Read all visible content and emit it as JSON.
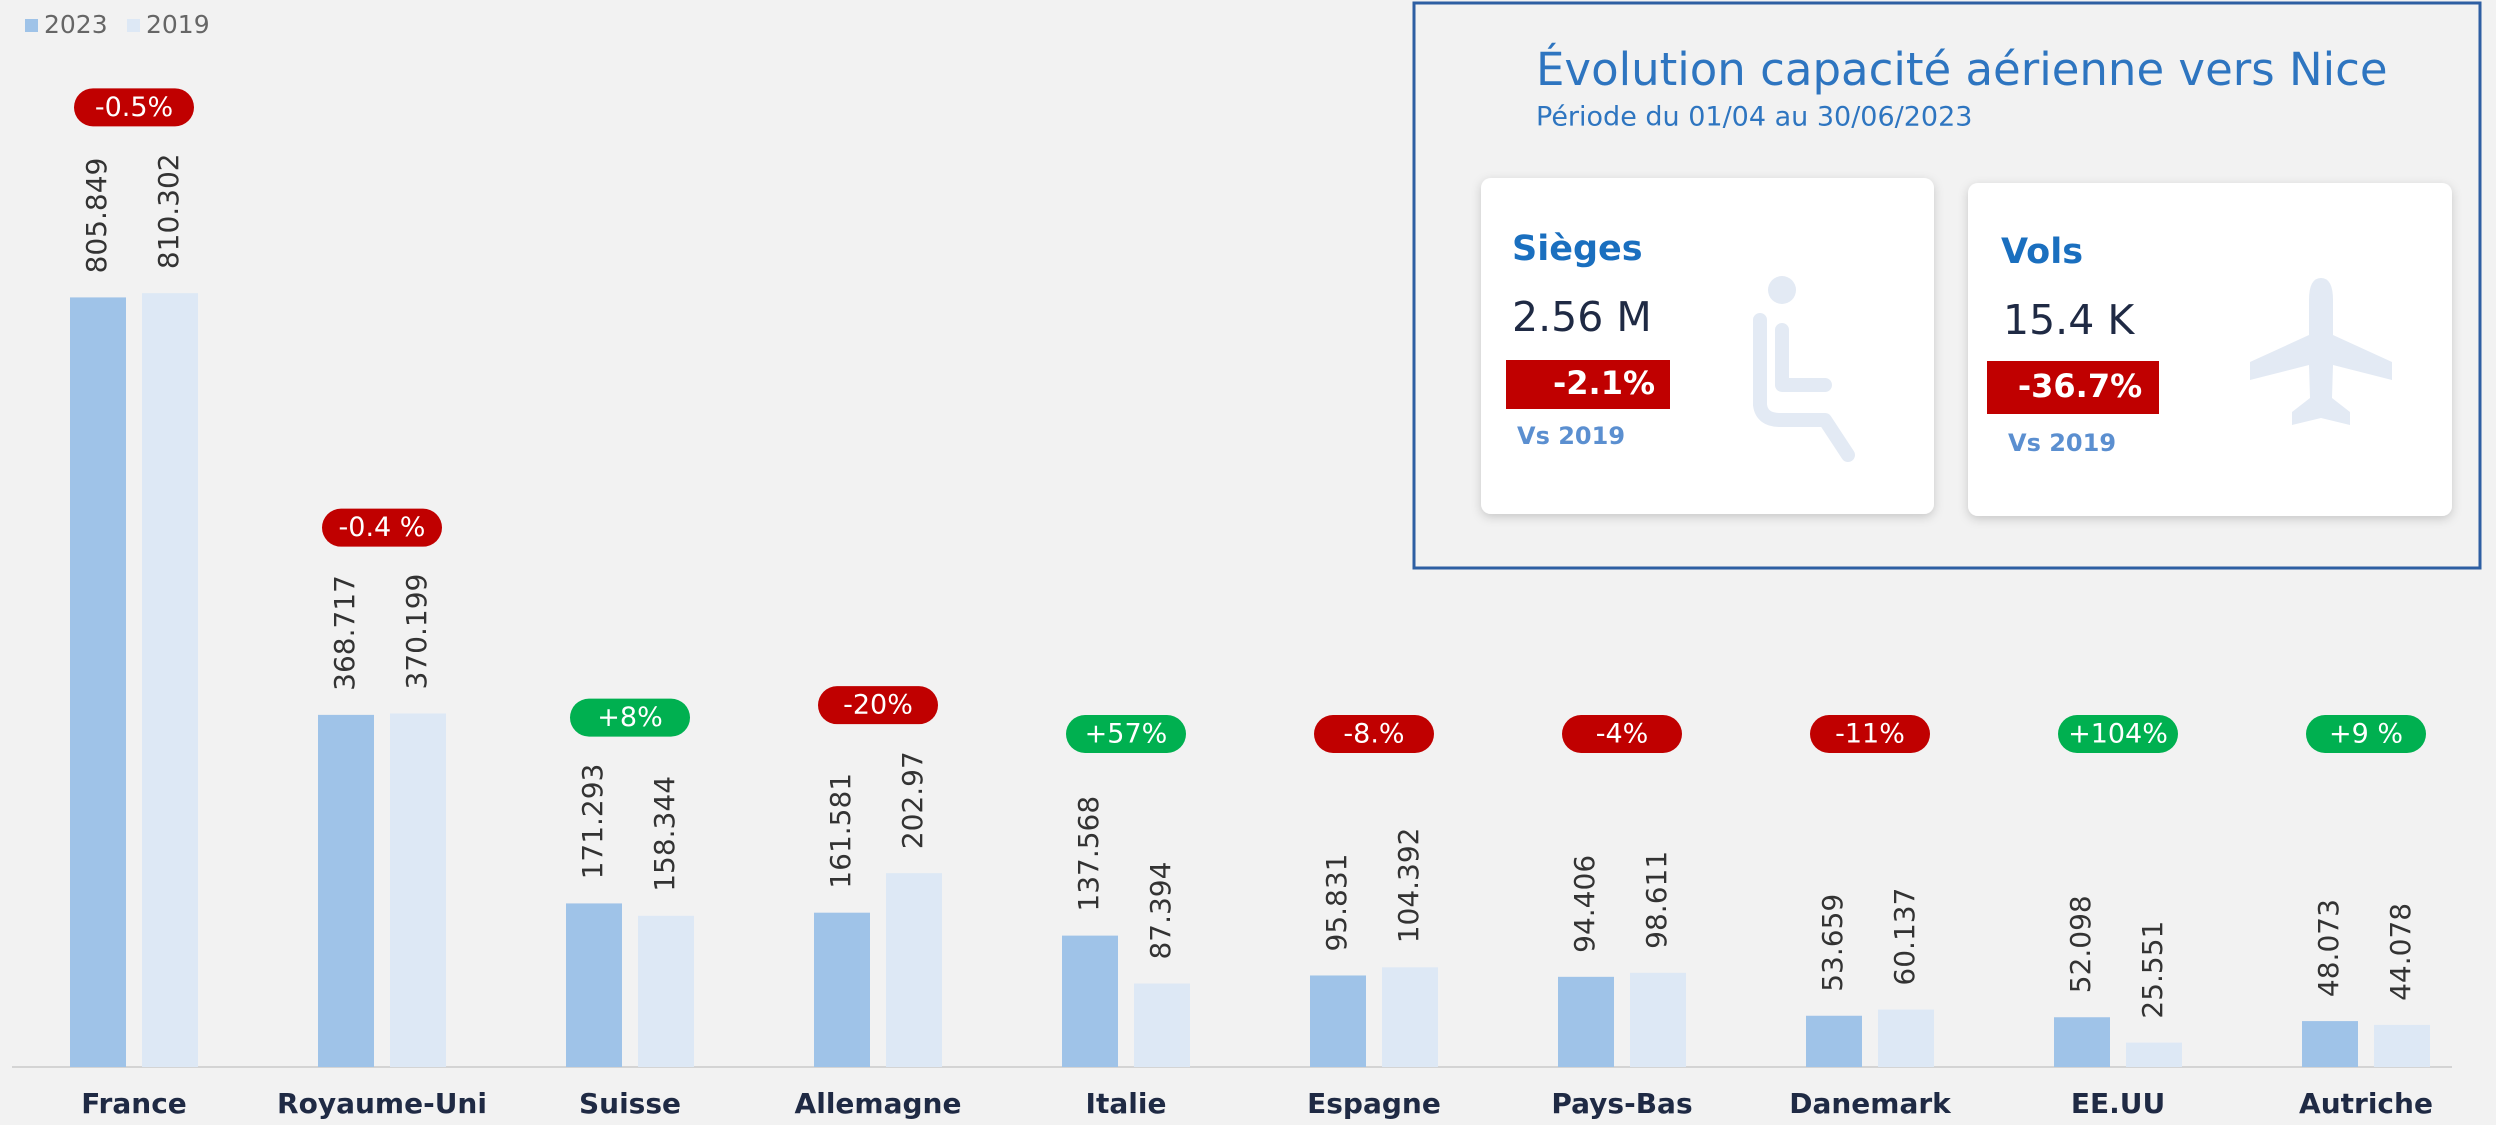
{
  "chart_data": {
    "type": "bar",
    "categories": [
      "France",
      "Royaume-Uni",
      "Suisse",
      "Allemagne",
      "Italie",
      "Espagne",
      "Pays-Bas",
      "Danemark",
      "EE.UU",
      "Autriche"
    ],
    "series": [
      {
        "name": "2023",
        "color": "#9fc3e8",
        "values": [
          805.849,
          368.717,
          171.293,
          161.581,
          137.568,
          95.831,
          94.406,
          53.659,
          52.098,
          48.073
        ]
      },
      {
        "name": "2019",
        "color": "#dde8f5",
        "values": [
          810.302,
          370.199,
          158.344,
          202.97,
          87.394,
          104.392,
          98.611,
          60.137,
          25.551,
          44.078
        ]
      }
    ],
    "changes": [
      "-0.5%",
      "-0.4 %",
      "+8%",
      "-20%",
      "+57%",
      "-8.%",
      "-4%",
      "-11%",
      "+104%",
      "+9 %"
    ],
    "change_colors": {
      "up": "#00b050",
      "down": "#c00000"
    },
    "ylim": [
      0,
      1000
    ],
    "legend": "top-left"
  },
  "kpi": {
    "title": "Évolution capacité aérienne vers Nice",
    "subtitle": "Période du 01/04 au 30/06/2023",
    "cards": [
      {
        "label": "Sièges",
        "value": "2.56 M",
        "change": "-2.1%",
        "note": "Vs 2019"
      },
      {
        "label": "Vols",
        "value": "15.4 K",
        "change": "-36.7%",
        "note": "Vs 2019"
      }
    ]
  }
}
